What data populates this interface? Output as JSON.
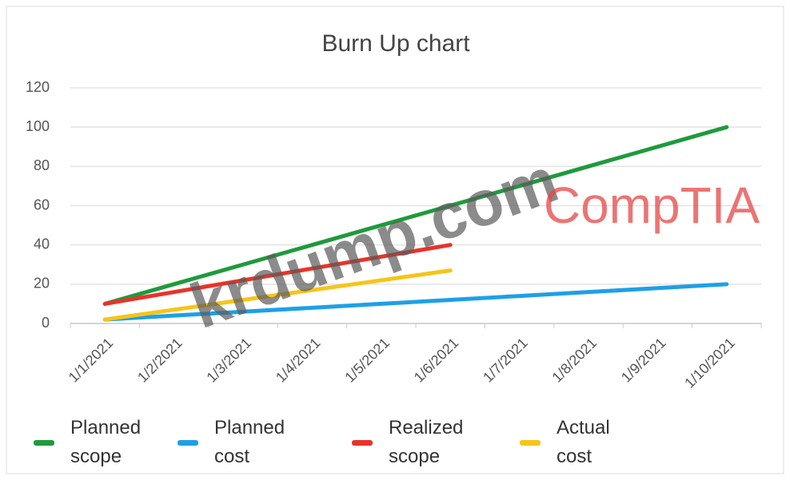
{
  "chart_data": {
    "type": "line",
    "title": "Burn Up chart",
    "categories": [
      "1/1/2021",
      "1/2/2021",
      "1/3/2021",
      "1/4/2021",
      "1/5/2021",
      "1/6/2021",
      "1/7/2021",
      "1/8/2021",
      "1/9/2021",
      "1/10/2021"
    ],
    "series": [
      {
        "name": "Planned scope",
        "color": "#1f9a3c",
        "values": [
          10,
          20,
          30,
          40,
          50,
          60,
          70,
          80,
          90,
          100
        ]
      },
      {
        "name": "Planned cost",
        "color": "#1ea0e6",
        "values": [
          2,
          4,
          6,
          8,
          10,
          12,
          14,
          16,
          18,
          20
        ]
      },
      {
        "name": "Realized scope",
        "color": "#e8332a",
        "values": [
          10,
          16,
          22,
          28,
          34,
          40,
          null,
          null,
          null,
          null
        ]
      },
      {
        "name": "Actual cost",
        "color": "#f5c518",
        "values": [
          2,
          7,
          12,
          17,
          22,
          27,
          null,
          null,
          null,
          null
        ]
      }
    ],
    "ylim": [
      0,
      120
    ],
    "yticks": [
      0,
      20,
      40,
      60,
      80,
      100,
      120
    ],
    "grid": true,
    "legend": "bottom",
    "watermarks": [
      "krdump.com",
      "CompTIA"
    ]
  }
}
